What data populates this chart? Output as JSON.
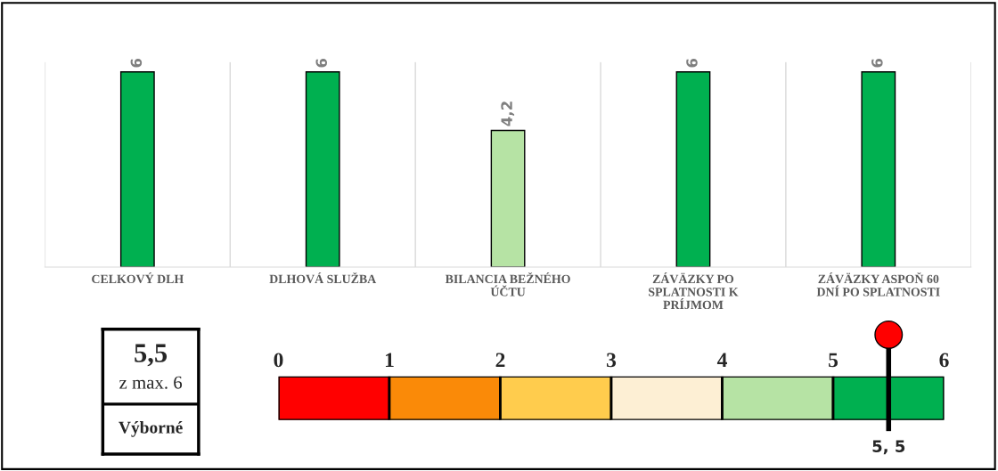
{
  "chart_data": [
    {
      "type": "bar",
      "categories": [
        "CELKOVÝ DLH",
        "DLHOVÁ SLUŽBA",
        "BILANCIA BEŽNÉHO\nÚČTU",
        "ZÁVÄZKY PO\nSPLATNOSTI K\nPRÍJMOM",
        "ZÁVÄZKY ASPOŇ 60\nDNÍ PO SPLATNOSTI"
      ],
      "values": [
        6,
        6,
        4.2,
        6,
        6
      ],
      "colors": [
        "#00b050",
        "#00b050",
        "#b6e3a4",
        "#00b050",
        "#00b050"
      ],
      "value_labels": [
        "6",
        "6",
        "4,2",
        "6",
        "6"
      ]
    },
    {
      "type": "other",
      "annotations": [
        "5,5",
        "z max. 6",
        "Výborné"
      ]
    },
    {
      "type": "bar",
      "orientation": "horizontal",
      "stacked": true,
      "categories": [
        null
      ],
      "series": [
        {
          "color": "#ff0000",
          "values": [
            1
          ]
        },
        {
          "color": "#fa8a08",
          "values": [
            1
          ]
        },
        {
          "color": "#ffcc4d",
          "values": [
            1
          ]
        },
        {
          "color": "#fdefd4",
          "values": [
            1
          ]
        },
        {
          "color": "#b6e3a4",
          "values": [
            1
          ]
        },
        {
          "color": "#00b050",
          "values": [
            1
          ]
        }
      ],
      "xlim": [
        0,
        6
      ],
      "xticks": [
        0,
        1,
        2,
        3,
        4,
        5,
        6
      ],
      "ref_lines": [
        {
          "axis": "x",
          "value": 5.5,
          "label": "5, 5",
          "color": "#000000"
        }
      ]
    }
  ]
}
